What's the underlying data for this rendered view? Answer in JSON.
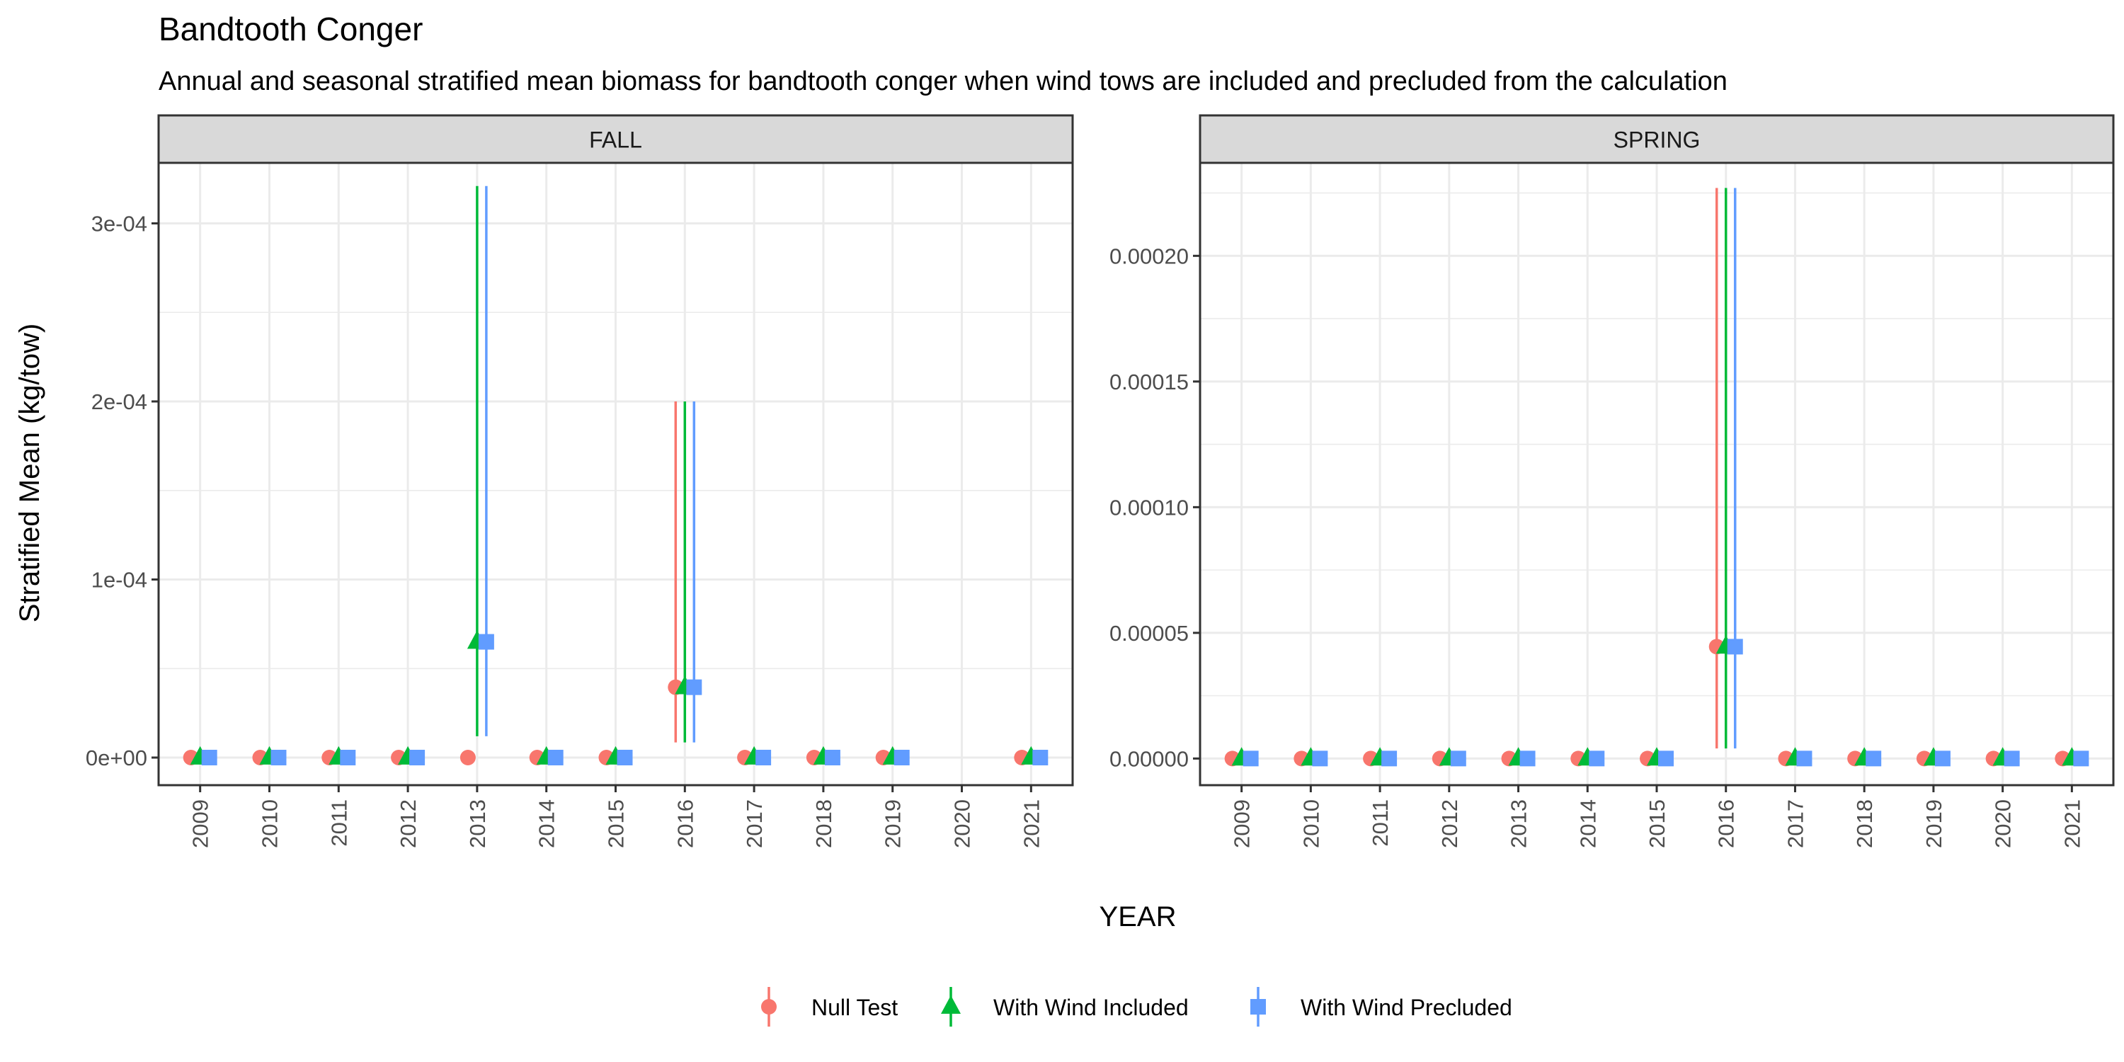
{
  "title": "Bandtooth Conger",
  "subtitle": "Annual and seasonal stratified mean biomass for bandtooth conger when wind tows are included and precluded from the calculation",
  "colors": {
    "null_test": "#F8766D",
    "wind_included": "#00BA38",
    "wind_precluded": "#619CFF",
    "strip_bg": "#D9D9D9",
    "grid": "#EBEBEB",
    "axis_text": "#4D4D4D",
    "panel_border": "#333333"
  },
  "chart_data": {
    "type": "scatter",
    "error_bars": true,
    "grid": true,
    "legend_position": "bottom",
    "xlabel": "YEAR",
    "ylabel": "Stratified Mean (kg/tow)",
    "legend": [
      {
        "key": "null_test",
        "label": "Null Test",
        "shape": "circle",
        "color": "#F8766D"
      },
      {
        "key": "wind_included",
        "label": "With Wind Included",
        "shape": "triangle",
        "color": "#00BA38"
      },
      {
        "key": "wind_precluded",
        "label": "With Wind Precluded",
        "shape": "square",
        "color": "#619CFF"
      }
    ],
    "panels": [
      {
        "strip_label": "FALL",
        "categories": [
          "2009",
          "2010",
          "2011",
          "2012",
          "2013",
          "2014",
          "2015",
          "2016",
          "2017",
          "2018",
          "2019",
          "2020",
          "2021"
        ],
        "ylim": [
          -1.55e-05,
          0.000334
        ],
        "y_ticks": [
          0,
          0.0001,
          0.0002,
          0.0003
        ],
        "y_tick_labels": [
          "0e+00",
          "1e-04",
          "2e-04",
          "3e-04"
        ],
        "series": [
          {
            "name": "Null Test",
            "key": "null_test",
            "points": [
              {
                "x": "2009",
                "y": 0
              },
              {
                "x": "2010",
                "y": 0
              },
              {
                "x": "2011",
                "y": 0
              },
              {
                "x": "2012",
                "y": 0
              },
              {
                "x": "2013",
                "y": 0
              },
              {
                "x": "2014",
                "y": 0
              },
              {
                "x": "2015",
                "y": 0
              },
              {
                "x": "2016",
                "y": 3.95e-05,
                "lo": 8.5e-06,
                "hi": 0.0002
              },
              {
                "x": "2017",
                "y": 0
              },
              {
                "x": "2018",
                "y": 0
              },
              {
                "x": "2019",
                "y": 0
              },
              {
                "x": "2021",
                "y": 0
              }
            ]
          },
          {
            "name": "With Wind Included",
            "key": "wind_included",
            "points": [
              {
                "x": "2009",
                "y": 0
              },
              {
                "x": "2010",
                "y": 0
              },
              {
                "x": "2011",
                "y": 0
              },
              {
                "x": "2012",
                "y": 0
              },
              {
                "x": "2013",
                "y": 6.5e-05,
                "lo": 1.2e-05,
                "hi": 0.000321
              },
              {
                "x": "2014",
                "y": 0
              },
              {
                "x": "2015",
                "y": 0
              },
              {
                "x": "2016",
                "y": 3.95e-05,
                "lo": 8.5e-06,
                "hi": 0.0002
              },
              {
                "x": "2017",
                "y": 0
              },
              {
                "x": "2018",
                "y": 0
              },
              {
                "x": "2019",
                "y": 0
              },
              {
                "x": "2021",
                "y": 0
              }
            ]
          },
          {
            "name": "With Wind Precluded",
            "key": "wind_precluded",
            "points": [
              {
                "x": "2009",
                "y": 0
              },
              {
                "x": "2010",
                "y": 0
              },
              {
                "x": "2011",
                "y": 0
              },
              {
                "x": "2012",
                "y": 0
              },
              {
                "x": "2013",
                "y": 6.5e-05,
                "lo": 1.2e-05,
                "hi": 0.000321
              },
              {
                "x": "2014",
                "y": 0
              },
              {
                "x": "2015",
                "y": 0
              },
              {
                "x": "2016",
                "y": 3.95e-05,
                "lo": 8.5e-06,
                "hi": 0.0002
              },
              {
                "x": "2017",
                "y": 0
              },
              {
                "x": "2018",
                "y": 0
              },
              {
                "x": "2019",
                "y": 0
              },
              {
                "x": "2021",
                "y": 0
              }
            ]
          }
        ]
      },
      {
        "strip_label": "SPRING",
        "categories": [
          "2009",
          "2010",
          "2011",
          "2012",
          "2013",
          "2014",
          "2015",
          "2016",
          "2017",
          "2018",
          "2019",
          "2020",
          "2021"
        ],
        "ylim": [
          -1.06e-05,
          0.000237
        ],
        "y_ticks": [
          0,
          5e-05,
          0.0001,
          0.00015,
          0.0002
        ],
        "y_tick_labels": [
          "0.00000",
          "0.00005",
          "0.00010",
          "0.00015",
          "0.00020"
        ],
        "series": [
          {
            "name": "Null Test",
            "key": "null_test",
            "points": [
              {
                "x": "2009",
                "y": 0
              },
              {
                "x": "2010",
                "y": 0
              },
              {
                "x": "2011",
                "y": 0
              },
              {
                "x": "2012",
                "y": 0
              },
              {
                "x": "2013",
                "y": 0
              },
              {
                "x": "2014",
                "y": 0
              },
              {
                "x": "2015",
                "y": 0
              },
              {
                "x": "2016",
                "y": 4.45e-05,
                "lo": 4e-06,
                "hi": 0.000227
              },
              {
                "x": "2017",
                "y": 0
              },
              {
                "x": "2018",
                "y": 0
              },
              {
                "x": "2019",
                "y": 0
              },
              {
                "x": "2020",
                "y": 0
              },
              {
                "x": "2021",
                "y": 0
              }
            ]
          },
          {
            "name": "With Wind Included",
            "key": "wind_included",
            "points": [
              {
                "x": "2009",
                "y": 0
              },
              {
                "x": "2010",
                "y": 0
              },
              {
                "x": "2011",
                "y": 0
              },
              {
                "x": "2012",
                "y": 0
              },
              {
                "x": "2013",
                "y": 0
              },
              {
                "x": "2014",
                "y": 0
              },
              {
                "x": "2015",
                "y": 0
              },
              {
                "x": "2016",
                "y": 4.45e-05,
                "lo": 4e-06,
                "hi": 0.000227
              },
              {
                "x": "2017",
                "y": 0
              },
              {
                "x": "2018",
                "y": 0
              },
              {
                "x": "2019",
                "y": 0
              },
              {
                "x": "2020",
                "y": 0
              },
              {
                "x": "2021",
                "y": 0
              }
            ]
          },
          {
            "name": "With Wind Precluded",
            "key": "wind_precluded",
            "points": [
              {
                "x": "2009",
                "y": 0
              },
              {
                "x": "2010",
                "y": 0
              },
              {
                "x": "2011",
                "y": 0
              },
              {
                "x": "2012",
                "y": 0
              },
              {
                "x": "2013",
                "y": 0
              },
              {
                "x": "2014",
                "y": 0
              },
              {
                "x": "2015",
                "y": 0
              },
              {
                "x": "2016",
                "y": 4.45e-05,
                "lo": 4e-06,
                "hi": 0.000227
              },
              {
                "x": "2017",
                "y": 0
              },
              {
                "x": "2018",
                "y": 0
              },
              {
                "x": "2019",
                "y": 0
              },
              {
                "x": "2020",
                "y": 0
              },
              {
                "x": "2021",
                "y": 0
              }
            ]
          }
        ]
      }
    ]
  }
}
